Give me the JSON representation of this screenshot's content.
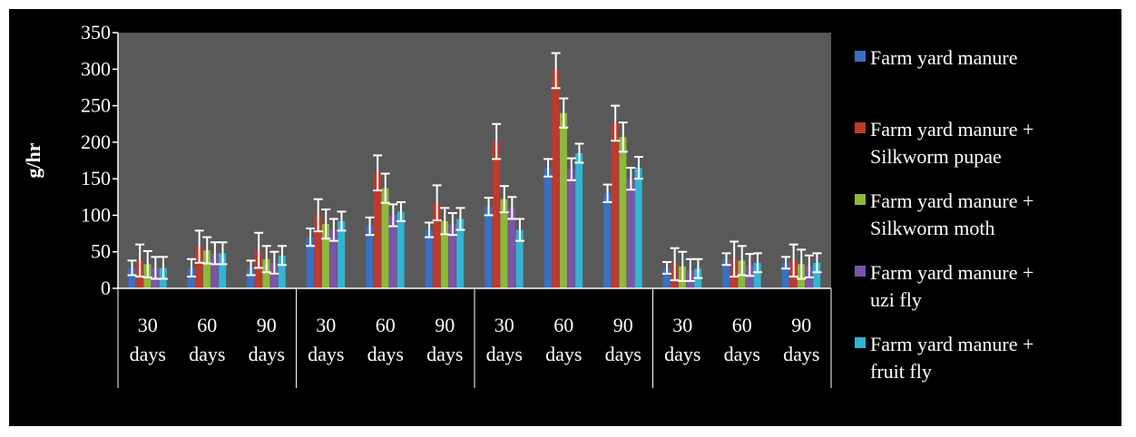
{
  "chart_data": {
    "type": "bar",
    "ylabel": "g/hr",
    "xlabel": "",
    "ylim": [
      0,
      350
    ],
    "yticks": [
      0,
      50,
      100,
      150,
      200,
      250,
      300,
      350
    ],
    "grid": false,
    "legend_position": "right",
    "categories": [
      [
        "30",
        "days"
      ],
      [
        "60",
        "days"
      ],
      [
        "90",
        "days"
      ],
      [
        "30",
        "days"
      ],
      [
        "60",
        "days"
      ],
      [
        "90",
        "days"
      ],
      [
        "30",
        "days"
      ],
      [
        "60",
        "days"
      ],
      [
        "90",
        "days"
      ],
      [
        "30",
        "days"
      ],
      [
        "60",
        "days"
      ],
      [
        "90",
        "days"
      ]
    ],
    "series": [
      {
        "name": "Farm yard manure",
        "legend_lines": [
          "Farm yard manure"
        ],
        "color": "#3a6fc4",
        "values": [
          28,
          28,
          28,
          70,
          85,
          80,
          112,
          165,
          130,
          28,
          40,
          35
        ],
        "errors": [
          10,
          12,
          10,
          12,
          12,
          10,
          12,
          12,
          12,
          8,
          8,
          8
        ]
      },
      {
        "name": "Farm yard manure + Silkworm pupae",
        "legend_lines": [
          "Farm yard manure +",
          "Silkworm pupae"
        ],
        "color": "#c0392b",
        "values": [
          38,
          57,
          52,
          100,
          158,
          117,
          201,
          298,
          226,
          33,
          40,
          38
        ],
        "errors": [
          22,
          22,
          24,
          22,
          24,
          24,
          24,
          24,
          24,
          22,
          24,
          22
        ]
      },
      {
        "name": "Farm yard manure + Silkworm moth",
        "legend_lines": [
          "Farm yard manure +",
          "Silkworm moth"
        ],
        "color": "#8db83a",
        "values": [
          33,
          52,
          40,
          88,
          137,
          92,
          122,
          240,
          207,
          30,
          38,
          33
        ],
        "errors": [
          18,
          18,
          18,
          20,
          20,
          18,
          18,
          20,
          20,
          20,
          20,
          20
        ]
      },
      {
        "name": "Farm yard manure + uzi fly",
        "legend_lines": [
          "Farm yard manure +",
          "uzi fly"
        ],
        "color": "#7a55a8",
        "values": [
          28,
          48,
          35,
          80,
          100,
          88,
          110,
          163,
          150,
          25,
          32,
          30
        ],
        "errors": [
          15,
          15,
          15,
          15,
          15,
          15,
          15,
          15,
          15,
          15,
          15,
          15
        ]
      },
      {
        "name": "Farm yard manure + fruit fly",
        "legend_lines": [
          "Farm yard manure +",
          "fruit fly"
        ],
        "color": "#32b4d2",
        "values": [
          28,
          48,
          45,
          92,
          105,
          95,
          80,
          185,
          165,
          27,
          35,
          35
        ],
        "errors": [
          15,
          15,
          13,
          13,
          13,
          15,
          15,
          13,
          15,
          13,
          13,
          13
        ]
      }
    ]
  }
}
